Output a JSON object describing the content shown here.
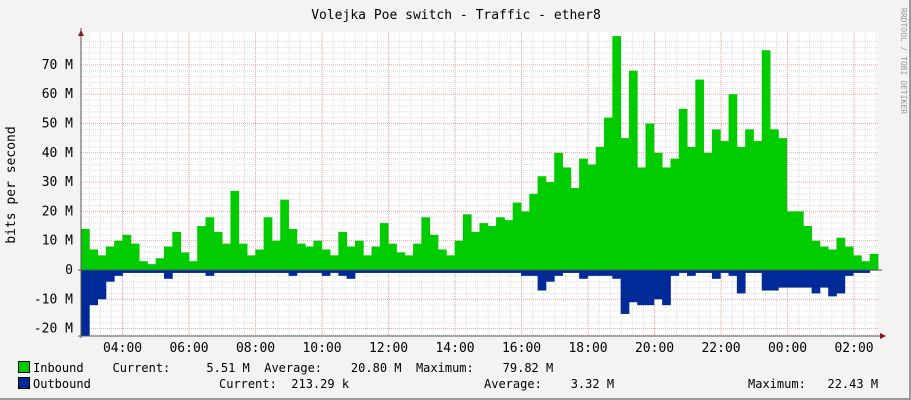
{
  "chart_data": {
    "type": "area",
    "title": "Volejka Poe switch - Traffic - ether8",
    "ylabel": "bits per second",
    "xlabel": "",
    "watermark": "RRDTOOL / TOBI OETIKER",
    "x_range_hours": [
      2.75,
      26.72
    ],
    "x_tick_labels": [
      "04:00",
      "06:00",
      "08:00",
      "10:00",
      "12:00",
      "14:00",
      "16:00",
      "18:00",
      "20:00",
      "22:00",
      "00:00",
      "02:00"
    ],
    "y_tick_labels": [
      "-20 M",
      "-10 M",
      "0",
      "10 M",
      "20 M",
      "30 M",
      "40 M",
      "50 M",
      "60 M",
      "70 M"
    ],
    "ylim": [
      -22.5,
      80
    ],
    "grid": true,
    "sample_interval_minutes": 15,
    "series": [
      {
        "name": "Inbound",
        "color": "#00cc00",
        "unit": "M",
        "values": [
          14,
          7,
          5,
          8,
          10,
          12,
          9,
          3,
          2,
          4,
          8,
          13,
          6,
          3,
          15,
          18,
          13,
          9,
          27,
          9,
          5,
          7,
          18,
          10,
          24,
          14,
          9,
          8,
          10,
          7,
          5,
          13,
          8,
          10,
          5,
          8,
          16,
          9,
          6,
          5,
          9,
          18,
          12,
          7,
          5,
          10,
          19,
          13,
          16,
          15,
          18,
          17,
          23,
          20,
          26,
          32,
          30,
          40,
          35,
          28,
          38,
          36,
          42,
          52,
          79.82,
          45,
          68,
          35,
          50,
          40,
          35,
          38,
          55,
          42,
          65,
          40,
          48,
          44,
          60,
          42,
          48,
          44,
          75,
          48,
          45,
          20,
          20,
          15,
          10,
          8,
          7,
          11,
          8,
          5,
          3,
          5.51
        ]
      },
      {
        "name": "Outbound",
        "color": "#002a97",
        "unit": "M",
        "values": [
          -22.43,
          -12,
          -10,
          -4,
          -2,
          -1,
          -1,
          -1,
          -1,
          -1,
          -3,
          -1,
          -1,
          -1,
          -1,
          -2,
          -1,
          -1,
          -1,
          -1,
          -1,
          -1,
          -1,
          -1,
          -1,
          -2,
          -1,
          -1,
          -1,
          -2,
          -1,
          -2,
          -3,
          -1,
          -1,
          -1,
          -1,
          -1,
          -1,
          -1,
          -1,
          -1,
          -1,
          -1,
          -1,
          -1,
          -1,
          -1,
          -1,
          -1,
          -1,
          -1,
          -1,
          -2,
          -2,
          -7,
          -4,
          -2,
          -1,
          -1,
          -3,
          -2,
          -2,
          -2,
          -3,
          -15,
          -11,
          -12,
          -12,
          -10,
          -12,
          -2,
          -1,
          -2,
          -1,
          -1,
          -3,
          -1,
          -2,
          -8,
          -1,
          -1,
          -7,
          -7,
          -6,
          -6,
          -6,
          -6,
          -8,
          -6,
          -9,
          -8,
          -2,
          -1,
          -1,
          -0.21
        ]
      }
    ],
    "legend": [
      {
        "name": "Inbound",
        "current_label": "Current:",
        "current": "5.51 M",
        "average_label": "Average:",
        "average": "20.80 M",
        "maximum_label": "Maximum:",
        "maximum": "79.82 M"
      },
      {
        "name": "Outbound",
        "current_label": "Current:",
        "current": "213.29 k",
        "average_label": "Average:",
        "average": "3.32 M",
        "maximum_label": "Maximum:",
        "maximum": "22.43 M"
      }
    ]
  }
}
